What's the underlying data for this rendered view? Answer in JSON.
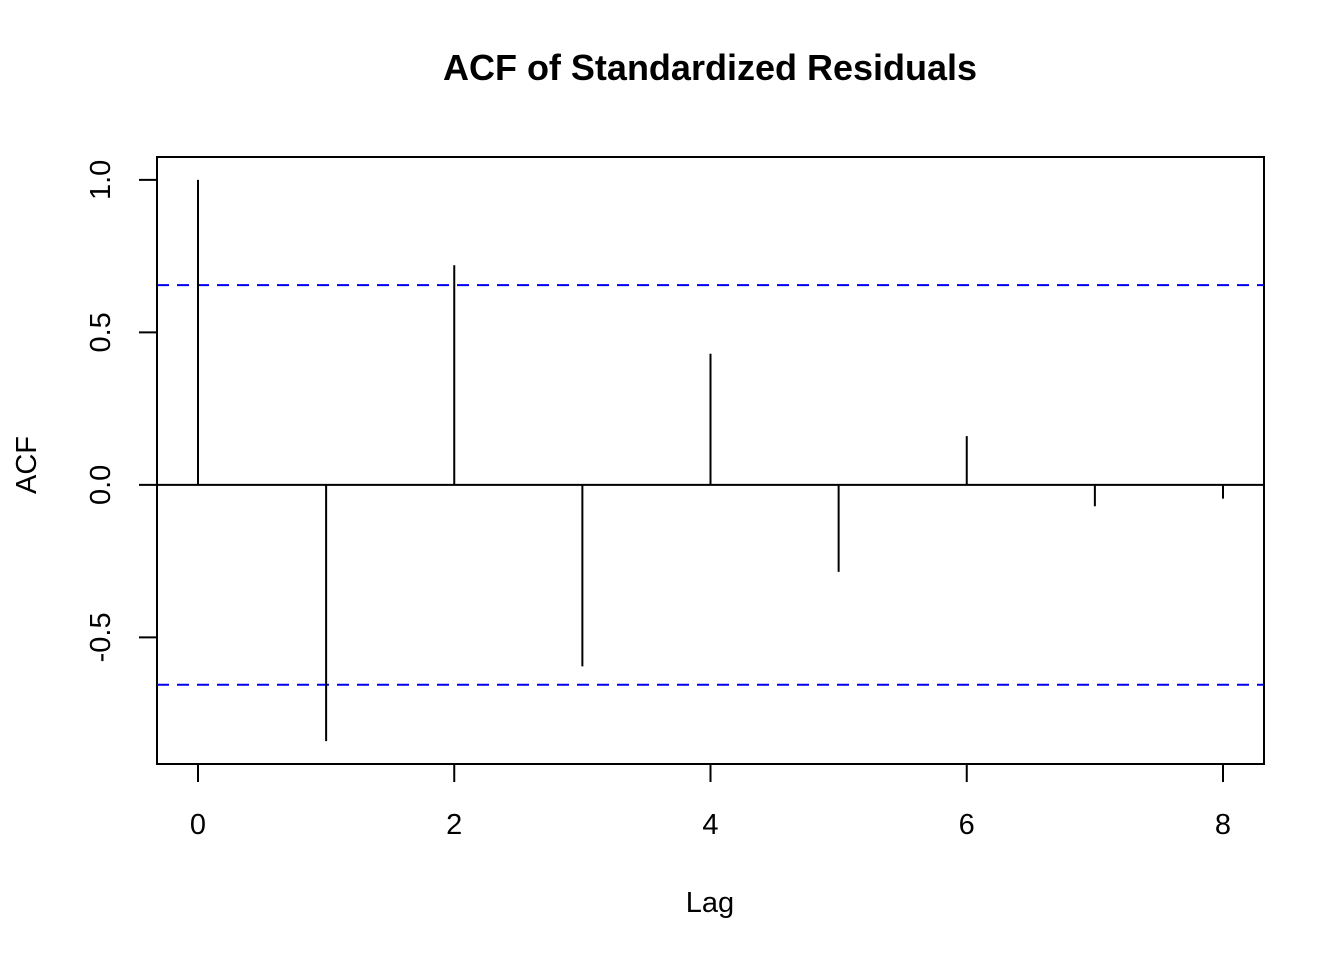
{
  "chart_data": {
    "type": "bar",
    "title": "ACF of Standardized Residuals",
    "xlabel": "Lag",
    "ylabel": "ACF",
    "x": [
      0,
      1,
      2,
      3,
      4,
      5,
      6,
      7,
      8
    ],
    "values": [
      1.0,
      -0.84,
      0.72,
      -0.595,
      0.43,
      -0.285,
      0.16,
      -0.07,
      -0.045
    ],
    "ci": [
      0.655,
      -0.655
    ],
    "xlim": [
      -0.32,
      8.32
    ],
    "ylim": [
      -0.915,
      1.075
    ],
    "xticks": [
      0,
      2,
      4,
      6,
      8
    ],
    "xtick_labels": [
      "0",
      "2",
      "4",
      "6",
      "8"
    ],
    "yticks": [
      -0.5,
      0.0,
      0.5,
      1.0
    ],
    "ytick_labels": [
      "-0.5",
      "0.0",
      "0.5",
      "1.0"
    ],
    "grid": false,
    "colors": {
      "sticks": "#000000",
      "ci_lines": "#0000ee",
      "zero_line": "#000000"
    }
  }
}
